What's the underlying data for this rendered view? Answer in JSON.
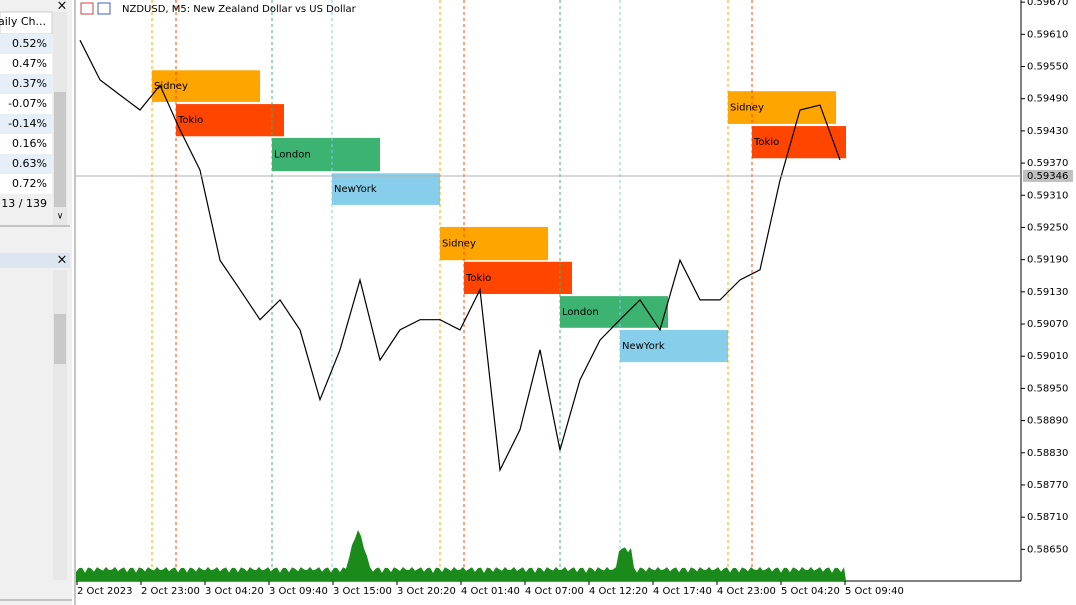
{
  "market_watch": {
    "header": "aily Ch...",
    "rows": [
      {
        "text": "0.52%",
        "color": "#1515d0"
      },
      {
        "text": "0.47%",
        "color": "#1515d0"
      },
      {
        "text": "0.37%",
        "color": "#1515d0"
      },
      {
        "text": "-0.07%",
        "color": "#e01010"
      },
      {
        "text": "-0.14%",
        "color": "#e01010"
      },
      {
        "text": "0.16%",
        "color": "#1515d0"
      },
      {
        "text": "0.63%",
        "color": "#1515d0"
      },
      {
        "text": "0.72%",
        "color": "#1515d0"
      }
    ],
    "footer": "13 / 139"
  },
  "chart": {
    "title": "NZDUSD, M5:  New Zealand Dollar vs US Dollar",
    "ylim": [
      0.58591,
      0.59674
    ],
    "yticks": [
      {
        "value": 0.5967,
        "label": "0.59670"
      },
      {
        "value": 0.5961,
        "label": "0.59610"
      },
      {
        "value": 0.5955,
        "label": "0.59550"
      },
      {
        "value": 0.5949,
        "label": "0.59490"
      },
      {
        "value": 0.5943,
        "label": "0.59430"
      },
      {
        "value": 0.5937,
        "label": "0.59370"
      },
      {
        "value": 0.5931,
        "label": "0.59310"
      },
      {
        "value": 0.5925,
        "label": "0.59250"
      },
      {
        "value": 0.5919,
        "label": "0.59190"
      },
      {
        "value": 0.5913,
        "label": "0.59130"
      },
      {
        "value": 0.5907,
        "label": "0.59070"
      },
      {
        "value": 0.5901,
        "label": "0.59010"
      },
      {
        "value": 0.5895,
        "label": "0.58950"
      },
      {
        "value": 0.5889,
        "label": "0.58890"
      },
      {
        "value": 0.5883,
        "label": "0.58830"
      },
      {
        "value": 0.5877,
        "label": "0.58770"
      },
      {
        "value": 0.5871,
        "label": "0.58710"
      },
      {
        "value": 0.5865,
        "label": "0.58650"
      }
    ],
    "current_price": 0.59346,
    "time_labels": [
      "2 Oct 2023",
      "2 Oct 23:00",
      "3 Oct 04:20",
      "3 Oct 09:40",
      "3 Oct 15:00",
      "3 Oct 20:20",
      "4 Oct 01:40",
      "4 Oct 07:00",
      "4 Oct 12:20",
      "4 Oct 17:40",
      "4 Oct 23:00",
      "5 Oct 04:20",
      "5 Oct 09:40"
    ],
    "price": [
      0.59599,
      0.59525,
      0.59497,
      0.59469,
      0.59515,
      0.59432,
      0.59357,
      0.59189,
      0.59134,
      0.59078,
      0.59115,
      0.59059,
      0.58929,
      0.59022,
      0.59152,
      0.59003,
      0.59059,
      0.59078,
      0.59078,
      0.59059,
      0.59134,
      0.58798,
      0.58873,
      0.59022,
      0.58835,
      0.58966,
      0.5904,
      0.59078,
      0.59115,
      0.59059,
      0.59189,
      0.59115,
      0.59115,
      0.59152,
      0.59171,
      0.59338,
      0.59469,
      0.59478,
      0.59376
    ],
    "sessions": [
      {
        "label": "Sidney",
        "color": "#ffa500",
        "high": 0.59543,
        "low": 0.59484
      },
      {
        "label": "Tokio",
        "color": "#ff4500",
        "high": 0.5948,
        "low": 0.5942
      },
      {
        "label": "London",
        "color": "#3cb371",
        "high": 0.59417,
        "low": 0.59355
      },
      {
        "label": "NewYork",
        "color": "#87ceeb",
        "high": 0.59351,
        "low": 0.59292
      },
      {
        "label": "Sidney",
        "color": "#ffa500",
        "high": 0.59251,
        "low": 0.59189
      },
      {
        "label": "Tokio",
        "color": "#ff4500",
        "high": 0.59186,
        "low": 0.59126
      },
      {
        "label": "London",
        "color": "#3cb371",
        "high": 0.59122,
        "low": 0.59063
      },
      {
        "label": "NewYork",
        "color": "#87ceeb",
        "high": 0.59059,
        "low": 0.58999
      },
      {
        "label": "Sidney",
        "color": "#ffa500",
        "high": 0.59504,
        "low": 0.59443
      },
      {
        "label": "Tokio",
        "color": "#ff4500",
        "high": 0.59439,
        "low": 0.59379
      }
    ]
  }
}
